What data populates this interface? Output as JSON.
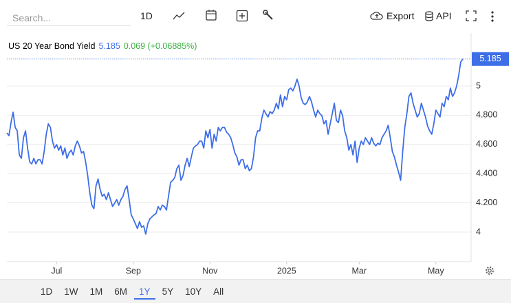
{
  "toolbar": {
    "search_placeholder": "Search...",
    "interval": "1D",
    "export": "Export",
    "api": "API"
  },
  "range_buttons": {
    "items": [
      "1D",
      "1W",
      "1M",
      "6M",
      "1Y",
      "5Y",
      "10Y",
      "All"
    ],
    "active": 4
  },
  "chart_data": {
    "type": "line",
    "title": "US 20 Year Bond Yield",
    "change": "0.069 (+0.06885%)",
    "series": [
      {
        "name": "US 20 Year Bond Yield",
        "color": "#3d6ee8",
        "values": [
          4.679,
          4.66,
          4.75,
          4.821,
          4.717,
          4.693,
          4.528,
          4.505,
          4.646,
          4.693,
          4.575,
          4.481,
          4.467,
          4.505,
          4.467,
          4.495,
          4.495,
          4.467,
          4.552,
          4.67,
          4.741,
          4.717,
          4.623,
          4.575,
          4.599,
          4.561,
          4.59,
          4.528,
          4.575,
          4.505,
          4.542,
          4.561,
          4.528,
          4.59,
          4.623,
          4.59,
          4.542,
          4.552,
          4.481,
          4.387,
          4.269,
          4.184,
          4.16,
          4.316,
          4.363,
          4.292,
          4.245,
          4.259,
          4.222,
          4.269,
          4.222,
          4.175,
          4.198,
          4.222,
          4.184,
          4.222,
          4.245,
          4.292,
          4.316,
          4.222,
          4.118,
          4.09,
          4.057,
          4.024,
          4.071,
          4.033,
          4.042,
          3.986,
          4.057,
          4.09,
          4.104,
          4.118,
          4.127,
          4.175,
          4.151,
          4.184,
          4.175,
          4.151,
          4.245,
          4.34,
          4.354,
          4.373,
          4.434,
          4.458,
          4.354,
          4.387,
          4.458,
          4.505,
          4.448,
          4.514,
          4.575,
          4.59,
          4.599,
          4.623,
          4.623,
          4.575,
          4.693,
          4.646,
          4.703,
          4.575,
          4.67,
          4.623,
          4.717,
          4.693,
          4.717,
          4.717,
          4.684,
          4.67,
          4.646,
          4.599,
          4.542,
          4.514,
          4.458,
          4.495,
          4.495,
          4.434,
          4.458,
          4.42,
          4.434,
          4.514,
          4.646,
          4.693,
          4.693,
          4.778,
          4.835,
          4.811,
          4.788,
          4.825,
          4.811,
          4.835,
          4.882,
          4.844,
          4.939,
          4.858,
          4.929,
          4.906,
          4.976,
          4.986,
          4.967,
          5.0,
          5.047,
          5.0,
          4.92,
          4.882,
          4.873,
          4.892,
          4.929,
          4.892,
          4.835,
          4.788,
          4.835,
          4.811,
          4.797,
          4.741,
          4.764,
          4.67,
          4.741,
          4.811,
          4.882,
          4.764,
          4.75,
          4.835,
          4.797,
          4.693,
          4.646,
          4.561,
          4.599,
          4.528,
          4.623,
          4.476,
          4.575,
          4.623,
          4.599,
          4.646,
          4.623,
          4.599,
          4.646,
          4.608,
          4.59,
          4.608,
          4.599,
          4.646,
          4.67,
          4.693,
          4.731,
          4.646,
          4.552,
          4.514,
          4.458,
          4.41,
          4.354,
          4.552,
          4.717,
          4.811,
          4.929,
          4.953,
          4.882,
          4.835,
          4.788,
          4.811,
          4.882,
          4.835,
          4.788,
          4.726,
          4.693,
          4.67,
          4.741,
          4.835,
          4.811,
          4.788,
          4.882,
          4.858,
          4.929,
          4.906,
          4.986,
          4.929,
          4.953,
          5.0,
          5.071,
          5.165,
          5.185
        ]
      }
    ],
    "xlim": [
      0,
      224
    ],
    "xticks": [
      {
        "value": 24,
        "label": "Jul"
      },
      {
        "value": 61,
        "label": "Sep"
      },
      {
        "value": 98,
        "label": "Nov"
      },
      {
        "value": 135,
        "label": "2025"
      },
      {
        "value": 170,
        "label": "Mar"
      },
      {
        "value": 207,
        "label": "May"
      }
    ],
    "ylim": [
      3.797,
      5.363
    ],
    "yticks": [
      4,
      {
        "value": 4.2,
        "label": "4.200"
      },
      {
        "value": 4.4,
        "label": "4.400"
      },
      {
        "value": 4.6,
        "label": "4.600"
      },
      {
        "value": 4.8,
        "label": "4.800"
      },
      5
    ],
    "grid": true
  }
}
